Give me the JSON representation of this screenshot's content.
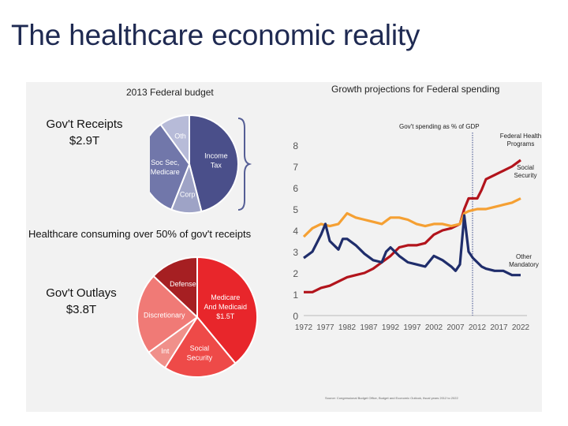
{
  "slide": {
    "title": "The healthcare economic reality",
    "budget_label": "2013 Federal budget",
    "growth_label": "Growth projections for Federal spending",
    "receipts_title": "Gov't Receipts",
    "receipts_value": "$2.9T",
    "consuming_text": "Healthcare consuming over 50% of gov't receipts",
    "outlays_title": "Gov't Outlays",
    "outlays_value": "$3.8T",
    "source_note": "Source: Congressional Budget Office, Budget and Economic Outlook, fiscal years 2012 to 2022"
  },
  "receipts_pie": {
    "slices": [
      {
        "label": "Income Tax",
        "value": 46,
        "color": "#4a4f8a"
      },
      {
        "label": "Corp",
        "value": 10,
        "color": "#9ea3c6"
      },
      {
        "label": "Soc Sec, Medicare",
        "value": 34,
        "color": "#7177aa"
      },
      {
        "label": "Oth",
        "value": 10,
        "color": "#b7bbd8"
      }
    ]
  },
  "outlays_pie": {
    "slices": [
      {
        "label": "Medicare And Medicaid",
        "sublabel": "$1.5T",
        "value": 39,
        "color": "#e8262b"
      },
      {
        "label": "Social Security",
        "value": 20,
        "color": "#ee4a48"
      },
      {
        "label": "Int",
        "value": 6,
        "color": "#f0908a"
      },
      {
        "label": "Discretionary",
        "value": 22,
        "color": "#f07a76"
      },
      {
        "label": "Defense",
        "value": 13,
        "color": "#a61f22"
      }
    ]
  },
  "chart_data": {
    "type": "line",
    "title": "Growth projections for Federal spending",
    "ylabel": "Gov't spending as % of GDP",
    "xlabel": "",
    "xlim": [
      1972,
      2022
    ],
    "ylim": [
      0,
      8
    ],
    "xticks": [
      "1972",
      "1977",
      "1982",
      "1987",
      "1992",
      "1997",
      "2002",
      "2007",
      "2012",
      "2017",
      "2022"
    ],
    "yticks": [
      "0",
      "1",
      "2",
      "3",
      "4",
      "5",
      "6",
      "7",
      "8"
    ],
    "projection_marker_x": 2012,
    "series": [
      {
        "name": "Federal Health Programs",
        "color": "#b2141c",
        "x": [
          1972,
          1974,
          1976,
          1978,
          1980,
          1982,
          1984,
          1986,
          1988,
          1990,
          1992,
          1994,
          1996,
          1998,
          2000,
          2002,
          2004,
          2006,
          2008,
          2009,
          2010,
          2011,
          2012,
          2013,
          2014,
          2016,
          2018,
          2020,
          2022
        ],
        "y": [
          1.1,
          1.1,
          1.3,
          1.4,
          1.6,
          1.8,
          1.9,
          2.0,
          2.2,
          2.5,
          2.8,
          3.2,
          3.3,
          3.3,
          3.4,
          3.8,
          4.0,
          4.1,
          4.3,
          5.0,
          5.5,
          5.5,
          5.5,
          5.9,
          6.4,
          6.6,
          6.8,
          7.0,
          7.3
        ]
      },
      {
        "name": "Social Security",
        "color": "#f5a033",
        "x": [
          1972,
          1974,
          1976,
          1978,
          1980,
          1982,
          1984,
          1986,
          1988,
          1990,
          1992,
          1994,
          1996,
          1998,
          2000,
          2002,
          2004,
          2006,
          2008,
          2009,
          2010,
          2012,
          2014,
          2016,
          2018,
          2020,
          2022
        ],
        "y": [
          3.7,
          4.1,
          4.3,
          4.2,
          4.3,
          4.8,
          4.6,
          4.5,
          4.4,
          4.3,
          4.6,
          4.6,
          4.5,
          4.3,
          4.2,
          4.3,
          4.3,
          4.2,
          4.3,
          4.8,
          4.9,
          5.0,
          5.0,
          5.1,
          5.2,
          5.3,
          5.5
        ]
      },
      {
        "name": "Other Mandatory",
        "color": "#1f2d6b",
        "x": [
          1972,
          1974,
          1976,
          1977,
          1978,
          1980,
          1981,
          1982,
          1984,
          1986,
          1988,
          1990,
          1991,
          1992,
          1994,
          1996,
          1998,
          2000,
          2002,
          2004,
          2006,
          2007,
          2008,
          2009,
          2010,
          2011,
          2012,
          2013,
          2014,
          2016,
          2018,
          2020,
          2022
        ],
        "y": [
          2.7,
          3.0,
          3.8,
          4.3,
          3.5,
          3.1,
          3.6,
          3.6,
          3.3,
          2.9,
          2.6,
          2.5,
          3.0,
          3.2,
          2.8,
          2.5,
          2.4,
          2.3,
          2.8,
          2.6,
          2.3,
          2.1,
          2.4,
          4.7,
          3.0,
          2.7,
          2.5,
          2.3,
          2.2,
          2.1,
          2.1,
          1.9,
          1.9
        ]
      }
    ],
    "annotations": [
      {
        "text": "Federal Health Programs"
      },
      {
        "text": "Social Security"
      },
      {
        "text": "Other Mandatory"
      }
    ]
  }
}
